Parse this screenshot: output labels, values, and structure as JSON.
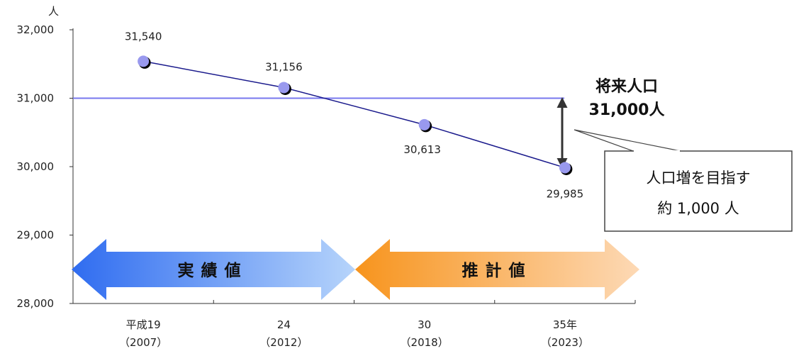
{
  "chart_data": {
    "type": "line",
    "y_unit": "人",
    "ylim": [
      28000,
      32000
    ],
    "yticks": [
      28000,
      29000,
      30000,
      31000,
      32000
    ],
    "y_tick_labels": [
      "28,000",
      "29,000",
      "30,000",
      "31,000",
      "32,000"
    ],
    "categories": [
      {
        "label": "平成19",
        "sub": "（2007）"
      },
      {
        "label": "24",
        "sub": "（2012）"
      },
      {
        "label": "30",
        "sub": "（2018）"
      },
      {
        "label": "35年",
        "sub": "（2023）"
      }
    ],
    "series": [
      {
        "values": [
          31540,
          31156,
          30613,
          29985
        ],
        "value_labels": [
          "31,540",
          "31,156",
          "30,613",
          "29,985"
        ],
        "color": "#1a1a8c",
        "marker_color": "#9999ee"
      }
    ],
    "target": {
      "value": 31000,
      "title": "将来人口",
      "value_label": "31,000人",
      "color": "#7777ee"
    },
    "periods": [
      {
        "label": "実績値",
        "color_from": "#2f6cf0",
        "color_to": "#b6d4fb"
      },
      {
        "label": "推計値",
        "color_from": "#f7941d",
        "color_to": "#fdd9b5"
      }
    ],
    "callout": {
      "line1": "人口増を目指す",
      "line2": "約 1,000 人"
    },
    "grid": false
  }
}
